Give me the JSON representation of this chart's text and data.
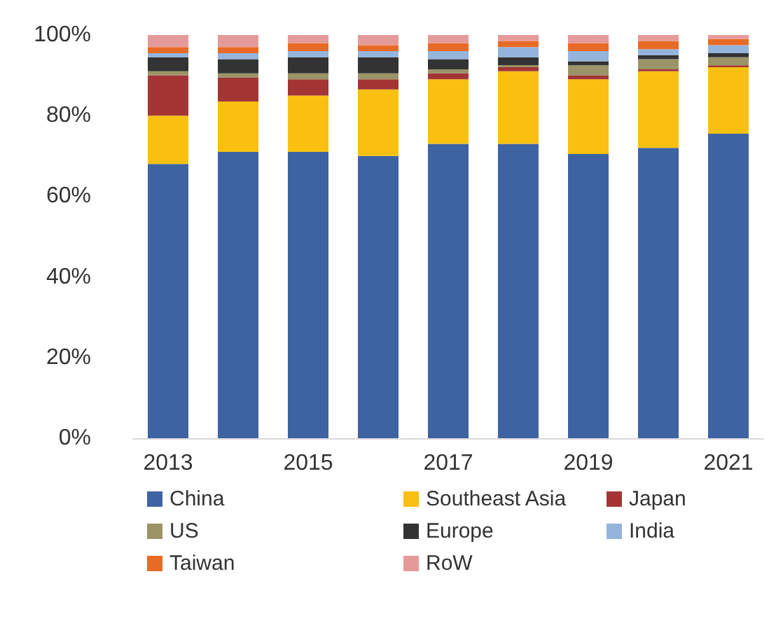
{
  "chart_data": {
    "type": "bar",
    "stacked": true,
    "categories": [
      "2013",
      null,
      "2015",
      null,
      "2017",
      null,
      "2019",
      null,
      "2021"
    ],
    "series": [
      {
        "name": "China",
        "color": "#3e63a3",
        "values": [
          68,
          71,
          71,
          70,
          73,
          73,
          70.5,
          72,
          75.5
        ]
      },
      {
        "name": "Southeast Asia",
        "color": "#f9c012",
        "values": [
          12,
          12.5,
          14,
          16.5,
          16,
          18,
          18.5,
          19,
          16.5
        ]
      },
      {
        "name": "Japan",
        "color": "#a33634",
        "values": [
          10,
          6,
          4,
          2.5,
          1.5,
          1,
          1,
          0.5,
          0.5
        ]
      },
      {
        "name": "US",
        "color": "#9a9467",
        "values": [
          1,
          1,
          1.5,
          1.5,
          1,
          0.5,
          2.5,
          2.5,
          2
        ]
      },
      {
        "name": "Europe",
        "color": "#333333",
        "values": [
          3.5,
          3.5,
          4,
          4,
          2.5,
          2,
          1,
          1,
          1
        ]
      },
      {
        "name": "India",
        "color": "#94b4dc",
        "values": [
          1,
          1.5,
          1.5,
          1.5,
          2,
          2.5,
          2.5,
          1.5,
          2
        ]
      },
      {
        "name": "Taiwan",
        "color": "#e96a25",
        "values": [
          1.5,
          1.5,
          2,
          1.5,
          2,
          1.5,
          2,
          2,
          1.5
        ]
      },
      {
        "name": "RoW",
        "color": "#e59a9a",
        "values": [
          3,
          3,
          2,
          2.5,
          2,
          1.5,
          2,
          1.5,
          1
        ]
      }
    ],
    "ylim": [
      0,
      100
    ],
    "yticks": [
      {
        "value": 0,
        "label": "0%"
      },
      {
        "value": 20,
        "label": "20%"
      },
      {
        "value": 40,
        "label": "40%"
      },
      {
        "value": 60,
        "label": "60%"
      },
      {
        "value": 80,
        "label": "80%"
      },
      {
        "value": 100,
        "label": "100%"
      }
    ],
    "grid": false,
    "legend": "bottom"
  }
}
